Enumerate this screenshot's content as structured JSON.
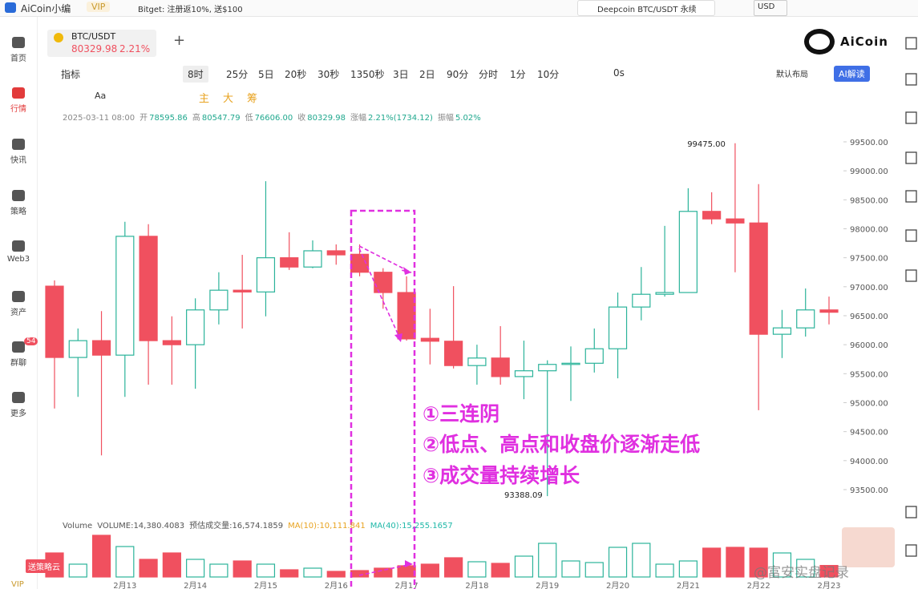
{
  "topbar": {
    "app": "AiCoin小编",
    "vip": "VIP",
    "promo": "Bitget: 注册返10%, 送$100",
    "search": "Deepcoin BTC/USDT 永续",
    "currency": "USD"
  },
  "sidebar": {
    "items": [
      "首页",
      "行情",
      "快讯",
      "策略",
      "Web3",
      "资产",
      "群聊",
      "更多"
    ],
    "badge": "54"
  },
  "tab": {
    "symbol": "BTC/USDT",
    "price": "80329.98",
    "change": "2.21%"
  },
  "brand": "AiCoin",
  "toolbar": {
    "indicator": "指标",
    "period": "8时",
    "intervals": [
      "25分",
      "5日",
      "20秒",
      "30秒",
      "1350秒",
      "3日",
      "2日",
      "90分",
      "分时",
      "1分",
      "10分"
    ],
    "countdown": "0s",
    "layout": "默认布局",
    "ai": "AI解读"
  },
  "drawbar": {
    "text_tool": "Aa",
    "main": "主",
    "big": "大",
    "chips": "筹"
  },
  "info": {
    "datetime": "2025-03-11 08:00",
    "open_label": "开",
    "open": "78595.86",
    "high_label": "高",
    "high": "80547.79",
    "low_label": "低",
    "low": "76606.00",
    "close_label": "收",
    "close": "80329.98",
    "change_label": "涨幅",
    "change": "2.21%(1734.12)",
    "amp_label": "振幅",
    "amp": "5.02%"
  },
  "chart_data": {
    "type": "candlestick",
    "categories": [
      null,
      null,
      null,
      "2月13",
      null,
      null,
      "2月14",
      null,
      null,
      "2月15",
      null,
      null,
      "2月16",
      null,
      null,
      "2月17",
      null,
      null,
      "2月18",
      null,
      null,
      "2月19",
      null,
      null,
      "2月20",
      null,
      null,
      "2月21",
      null,
      null,
      "2月22",
      null,
      null,
      "2月23"
    ],
    "open": [
      97010,
      95780,
      96070,
      95820,
      97870,
      96070,
      96000,
      96600,
      96940,
      96910,
      97500,
      97340,
      97620,
      97560,
      97250,
      96900,
      96110,
      96060,
      95640,
      95770,
      95450,
      95550,
      95660,
      95680,
      95930,
      96650,
      96870,
      96900,
      98300,
      98170,
      98100,
      96180,
      96290,
      96600
    ],
    "high": [
      97110,
      96280,
      96580,
      98120,
      98080,
      96490,
      96800,
      97250,
      97550,
      98820,
      97940,
      97800,
      97730,
      97730,
      97320,
      97180,
      96620,
      97010,
      96000,
      96320,
      96070,
      95730,
      95970,
      96280,
      96900,
      97340,
      98050,
      98700,
      98630,
      99475,
      98770,
      96600,
      96970,
      96830
    ],
    "low": [
      94900,
      95100,
      94090,
      95100,
      95310,
      95310,
      95240,
      96350,
      96280,
      96490,
      97290,
      97320,
      97380,
      97180,
      96620,
      96070,
      95660,
      95590,
      95310,
      95310,
      95060,
      93388.09,
      95030,
      95520,
      95420,
      96420,
      96830,
      96900,
      98080,
      97250,
      94870,
      95770,
      96140,
      96350
    ],
    "close": [
      95780,
      96070,
      95820,
      97870,
      96070,
      96000,
      96600,
      96940,
      96910,
      97500,
      97340,
      97620,
      97550,
      97250,
      96900,
      96100,
      96060,
      95640,
      95770,
      95450,
      95550,
      95660,
      95680,
      95930,
      96650,
      96870,
      96900,
      98300,
      98170,
      98100,
      96180,
      96290,
      96600,
      96560
    ],
    "up_color": "#2bb39a",
    "down_color": "#f0505f",
    "ylim": [
      93237,
      99873
    ],
    "yticks": [
      {
        "value": 93500,
        "label": "93500.00"
      },
      {
        "value": 94000,
        "label": "94000.00"
      },
      {
        "value": 94500,
        "label": "94500.00"
      },
      {
        "value": 95000,
        "label": "95000.00"
      },
      {
        "value": 95500,
        "label": "95500.00"
      },
      {
        "value": 96000,
        "label": "96000.00"
      },
      {
        "value": 96500,
        "label": "96500.00"
      },
      {
        "value": 97000,
        "label": "97000.00"
      },
      {
        "value": 97500,
        "label": "97500.00"
      },
      {
        "value": 98000,
        "label": "98000.00"
      },
      {
        "value": 98500,
        "label": "98500.00"
      },
      {
        "value": 99000,
        "label": "99000.00"
      },
      {
        "value": 99500,
        "label": "99500.00"
      }
    ],
    "max_label": {
      "value": 99475,
      "label": "99475.00"
    },
    "min_label": {
      "value": 93388.09,
      "label": "93388.09"
    },
    "annotations": [
      "①三连阴",
      "②低点、高点和收盘价逐渐走低",
      "③成交量持续增长"
    ],
    "volume": {
      "title": "Volume",
      "readout": "VOLUME:14,380.4083",
      "estimate": "预估成交量:16,574.1859",
      "ma10": "MA(10):10,111.841",
      "ma40": "MA(40):15,255.1657",
      "values": [
        30000,
        16000,
        52000,
        38000,
        22000,
        30000,
        22000,
        16000,
        20000,
        16000,
        9000,
        11000,
        7000,
        8000,
        11000,
        14000,
        16000,
        24000,
        19000,
        17000,
        26000,
        42000,
        20000,
        18000,
        37000,
        42000,
        16000,
        20000,
        36000,
        37000,
        36000,
        30000,
        22000,
        14380.4083
      ],
      "ylim": [
        0,
        55000
      ]
    }
  },
  "footer": {
    "promo": "送策略云",
    "vip": "VIP",
    "watermark": "@富安实盘记录"
  }
}
